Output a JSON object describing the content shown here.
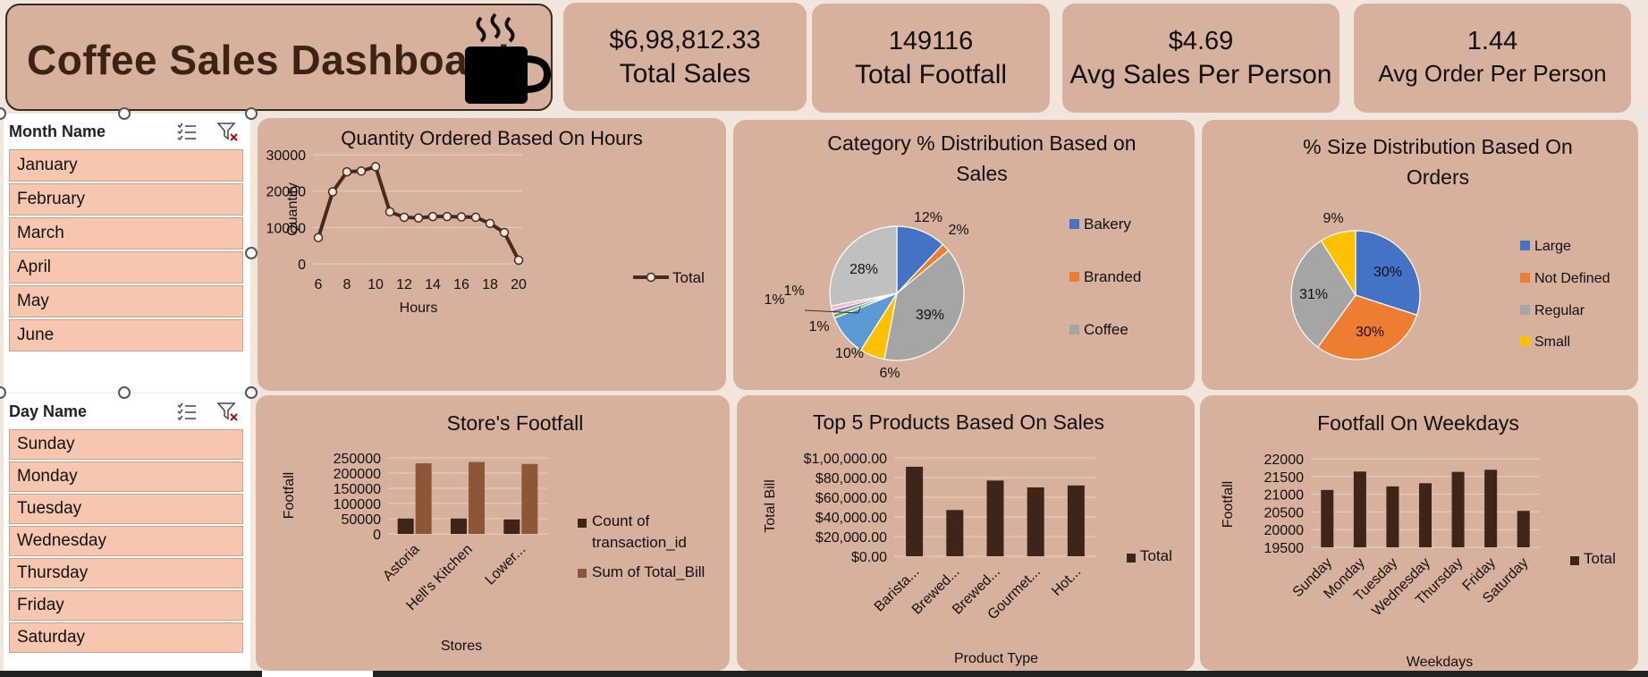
{
  "dashboard": {
    "title": "Coffee Sales Dashboard"
  },
  "kpis": [
    {
      "value": "$6,98,812.33",
      "label": "Total Sales"
    },
    {
      "value": "149116",
      "label": "Total Footfall"
    },
    {
      "value": "$4.69",
      "label": "Avg Sales Per Person"
    },
    {
      "value": "1.44",
      "label": "Avg Order Per Person"
    }
  ],
  "slicers": {
    "month": {
      "title": "Month Name",
      "items": [
        "January",
        "February",
        "March",
        "April",
        "May",
        "June"
      ]
    },
    "day": {
      "title": "Day Name",
      "items": [
        "Sunday",
        "Monday",
        "Tuesday",
        "Wednesday",
        "Thursday",
        "Friday",
        "Saturday"
      ]
    }
  },
  "colors": {
    "card": "#d8b09e",
    "background": "#f2e6dc",
    "slicer_item": "#f6c6ae",
    "bar_dark": "#3f2419",
    "bar_light": "#8c5637",
    "line": "#4a2a1c"
  },
  "chart_data": [
    {
      "type": "line",
      "title": "Quantity Ordered Based On Hours",
      "xlabel": "Hours",
      "ylabel": "Quantity",
      "x": [
        6,
        7,
        8,
        9,
        10,
        11,
        12,
        13,
        14,
        15,
        16,
        17,
        18,
        19,
        20
      ],
      "series": [
        {
          "name": "Total",
          "values": [
            7200,
            19800,
            25300,
            25500,
            26700,
            14300,
            12800,
            12600,
            13000,
            13000,
            12900,
            12800,
            11100,
            8600,
            1000
          ]
        }
      ],
      "ylim": [
        0,
        30000
      ],
      "yticks": [
        0,
        10000,
        20000,
        30000
      ],
      "xticks": [
        6,
        8,
        10,
        12,
        14,
        16,
        18,
        20
      ],
      "legend": "right"
    },
    {
      "type": "pie",
      "title": "Category % Distribution Based on Sales",
      "slices": [
        {
          "name": "Bakery",
          "value": 12,
          "color": "#4472c4"
        },
        {
          "name": "Branded",
          "value": 2,
          "color": "#ed7d31"
        },
        {
          "name": "Coffee",
          "value": 39,
          "color": "#a5a5a5"
        },
        {
          "name": "",
          "value": 6,
          "color": "#ffc000"
        },
        {
          "name": "",
          "value": 10,
          "color": "#5b9bd5"
        },
        {
          "name": "",
          "value": 1,
          "color": "#70ad47"
        },
        {
          "name": "",
          "value": 1,
          "color": "#9e7bc9"
        },
        {
          "name": "",
          "value": 1,
          "color": "#f4b8b8"
        },
        {
          "name": "",
          "value": 28,
          "color": "#c0c0c0"
        }
      ],
      "labels": [
        "12%",
        "2%",
        "39%",
        "6%",
        "10%",
        "1%",
        "1%",
        "1%",
        "28%"
      ],
      "legend_entries": [
        "Bakery",
        "Branded",
        "Coffee"
      ],
      "legend": "right"
    },
    {
      "type": "pie",
      "title": "% Size Distribution Based On Orders",
      "slices": [
        {
          "name": "Large",
          "value": 30,
          "color": "#4472c4"
        },
        {
          "name": "Not Defined",
          "value": 30,
          "color": "#ed7d31"
        },
        {
          "name": "Regular",
          "value": 31,
          "color": "#a5a5a5"
        },
        {
          "name": "Small",
          "value": 9,
          "color": "#ffc000"
        }
      ],
      "labels": [
        "30%",
        "30%",
        "31%",
        "9%"
      ],
      "legend": "right"
    },
    {
      "type": "bar",
      "title": "Store's Footfall",
      "xlabel": "Stores",
      "ylabel": "Footfall",
      "categories": [
        "Astoria",
        "Hell's Kitchen",
        "Lower..."
      ],
      "series": [
        {
          "name": "Count of transaction_id",
          "values": [
            50600,
            50700,
            47800
          ]
        },
        {
          "name": "Sum of Total_Bill",
          "values": [
            232200,
            236500,
            230100
          ]
        }
      ],
      "ylim": [
        0,
        250000
      ],
      "yticks": [
        0,
        50000,
        100000,
        150000,
        200000,
        250000
      ],
      "legend": "right"
    },
    {
      "type": "bar",
      "title": "Top 5 Products Based On Sales",
      "xlabel": "Product Type",
      "ylabel": "Total Bill",
      "categories": [
        "Barista...",
        "Brewed...",
        "Brewed...",
        "Gourmet...",
        "Hot..."
      ],
      "series": [
        {
          "name": "Total",
          "values": [
            91000,
            47000,
            77000,
            70000,
            72000
          ]
        }
      ],
      "ylim": [
        0,
        100000
      ],
      "ytick_labels": [
        "$0.00",
        "$20,000.00",
        "$40,000.00",
        "$60,000.00",
        "$80,000.00",
        "$1,00,000.00"
      ],
      "legend": "right"
    },
    {
      "type": "bar",
      "title": "Footfall On Weekdays",
      "xlabel": "Weekdays",
      "ylabel": "Footfall",
      "categories": [
        "Sunday",
        "Monday",
        "Tuesday",
        "Wednesday",
        "Thursday",
        "Friday",
        "Saturday"
      ],
      "series": [
        {
          "name": "Total",
          "values": [
            21120,
            21640,
            21220,
            21310,
            21630,
            21690,
            20530
          ]
        }
      ],
      "ylim": [
        19500,
        22000
      ],
      "yticks": [
        19500,
        20000,
        20500,
        21000,
        21500,
        22000
      ],
      "legend": "right"
    }
  ]
}
